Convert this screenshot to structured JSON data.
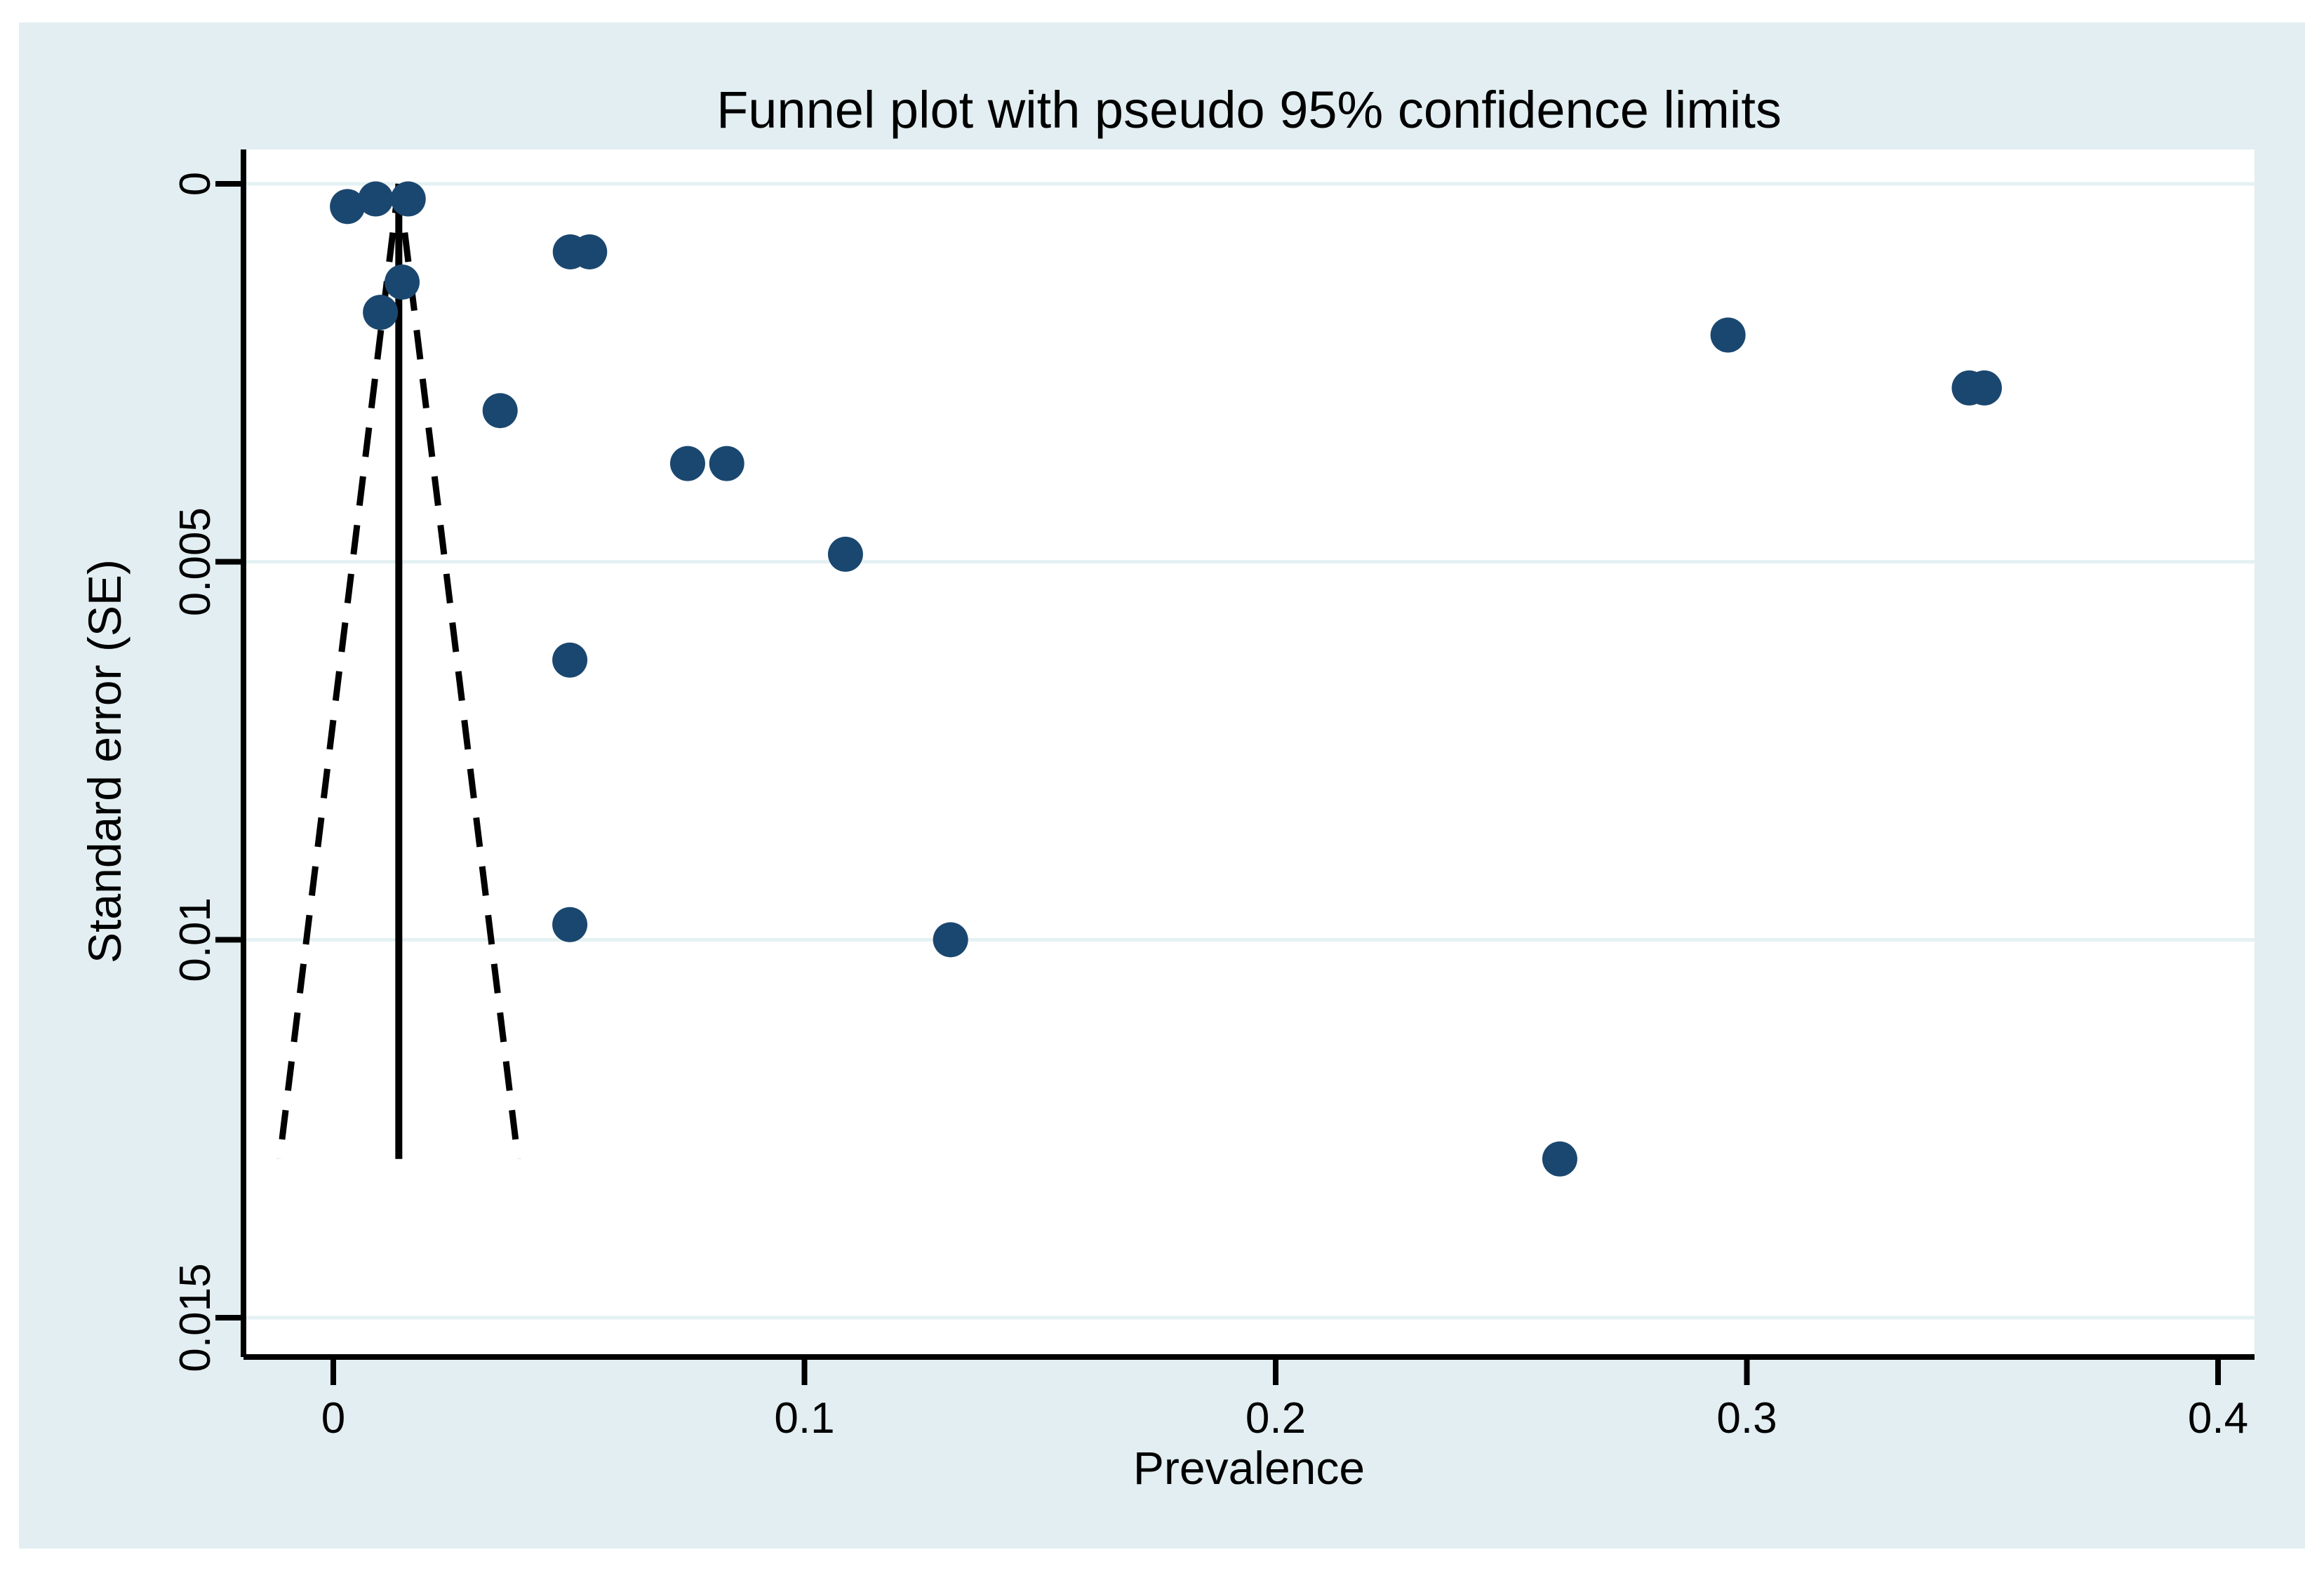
{
  "figure": {
    "outer_background": "#ffffff",
    "canvas_background": "#e2eef1",
    "plot_background": "#ffffff",
    "gridline_color": "#e4f1f3",
    "axis_color": "#000000",
    "marker_color": "#1a476f",
    "reference_line_color": "#000000"
  },
  "chart_data": {
    "type": "scatter",
    "title": "Funnel plot with pseudo 95% confidence limits",
    "xlabel": "Prevalence",
    "ylabel": "Standard error (SE)",
    "xlim": [
      -0.02,
      0.41
    ],
    "ylim": [
      0,
      0.0156
    ],
    "y_axis_inverted": true,
    "grid": true,
    "legend": "none",
    "xticks": [
      {
        "value": 0,
        "label": "0"
      },
      {
        "value": 0.1,
        "label": "0.1"
      },
      {
        "value": 0.2,
        "label": "0.2"
      },
      {
        "value": 0.3,
        "label": "0.3"
      },
      {
        "value": 0.4,
        "label": "0.4"
      }
    ],
    "yticks": [
      {
        "value": 0,
        "label": "0"
      },
      {
        "value": 0.005,
        "label": "0.005"
      },
      {
        "value": 0.01,
        "label": "0.01"
      },
      {
        "value": 0.015,
        "label": "0.015"
      }
    ],
    "series": [
      {
        "name": "studies",
        "marker": "filled-circle",
        "color": "#1a476f",
        "points": [
          {
            "prevalence": 0.003,
            "se": 0.0003
          },
          {
            "prevalence": 0.009,
            "se": 0.0002
          },
          {
            "prevalence": 0.0159,
            "se": 0.0002
          },
          {
            "prevalence": 0.0146,
            "se": 0.0013
          },
          {
            "prevalence": 0.01,
            "se": 0.0017
          },
          {
            "prevalence": 0.0503,
            "se": 0.0009
          },
          {
            "prevalence": 0.0544,
            "se": 0.0009
          },
          {
            "prevalence": 0.0354,
            "se": 0.003
          },
          {
            "prevalence": 0.0752,
            "se": 0.0037
          },
          {
            "prevalence": 0.0835,
            "se": 0.0037
          },
          {
            "prevalence": 0.1087,
            "se": 0.0049
          },
          {
            "prevalence": 0.0502,
            "se": 0.0063
          },
          {
            "prevalence": 0.0502,
            "se": 0.0098
          },
          {
            "prevalence": 0.131,
            "se": 0.01
          },
          {
            "prevalence": 0.296,
            "se": 0.002
          },
          {
            "prevalence": 0.3472,
            "se": 0.0027
          },
          {
            "prevalence": 0.3504,
            "se": 0.0027
          },
          {
            "prevalence": 0.2603,
            "se": 0.0129
          }
        ]
      }
    ],
    "pooled_estimate_line": {
      "x": 0.0139,
      "se_top": 0,
      "se_bottom": 0.0129,
      "style": "solid"
    },
    "pseudo_confidence_limits": {
      "multiplier": 1.96,
      "se_top": 0,
      "se_bottom": 0.0129,
      "style": "dashed"
    }
  }
}
